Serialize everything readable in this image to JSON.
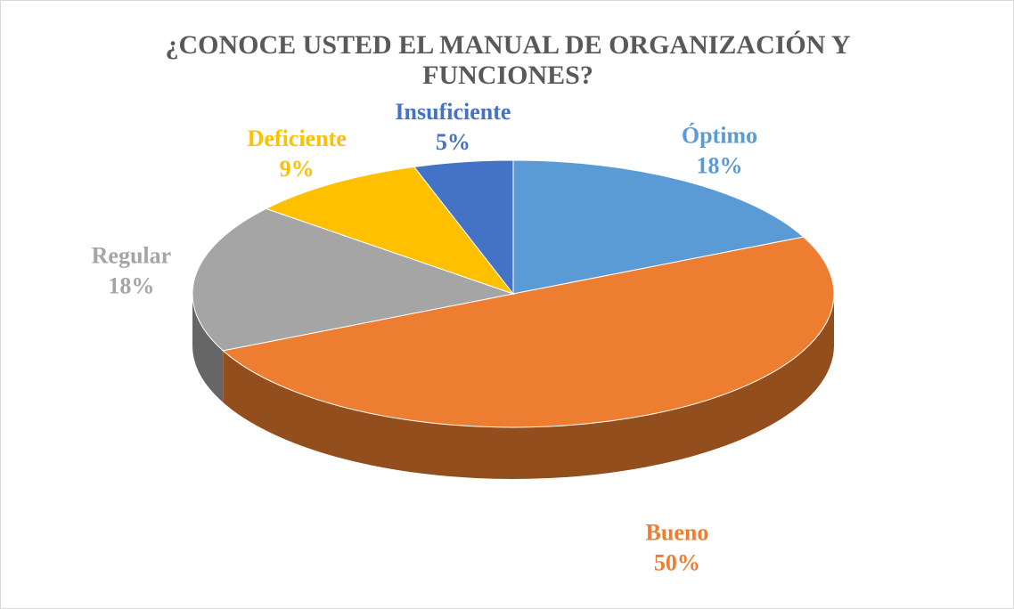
{
  "chart_data": {
    "type": "pie3d",
    "title": "¿CONOCE USTED EL MANUAL DE ORGANIZACIÓN Y FUNCIONES?",
    "categories": [
      "Óptimo",
      "Bueno",
      "Regular",
      "Deficiente",
      "Insuficiente"
    ],
    "values": [
      18,
      50,
      18,
      9,
      5
    ],
    "value_labels": [
      "18%",
      "50%",
      "18%",
      "9%",
      "5%"
    ],
    "colors": [
      "#5b9bd5",
      "#ed7d31",
      "#a5a5a5",
      "#ffc000",
      "#4472c4"
    ]
  }
}
